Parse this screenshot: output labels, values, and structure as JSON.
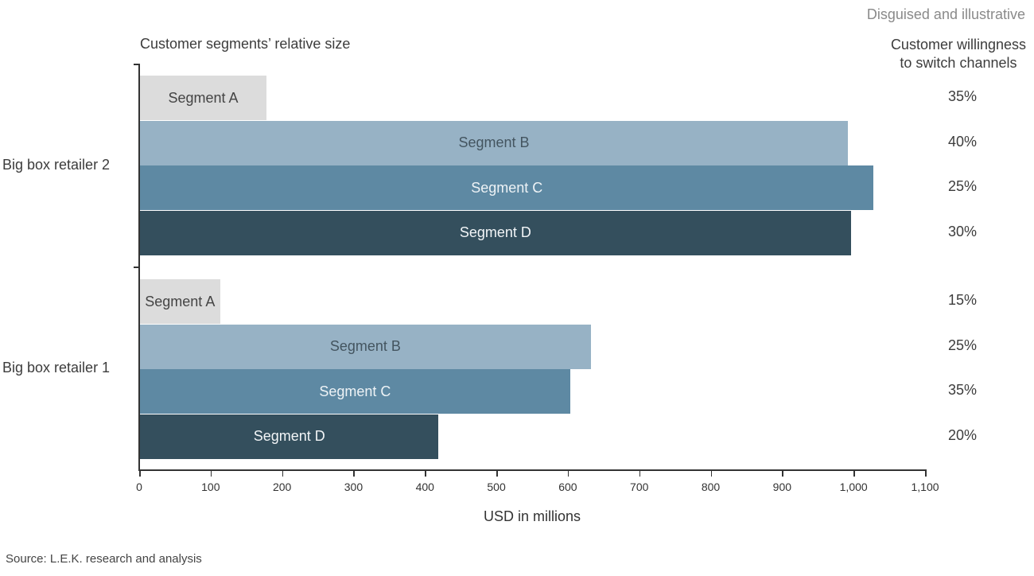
{
  "note": "Disguised and illustrative",
  "subtitle": "Customer segments’ relative size",
  "right_header": {
    "line1": "Customer willingness",
    "line2": "to switch channels"
  },
  "x_axis_label": "USD in millions",
  "source": "Source: L.E.K. research and analysis",
  "colors": {
    "segment_a": "#dcdcdc",
    "segment_b": "#97b2c5",
    "segment_c": "#5e89a3",
    "segment_d": "#344f5d",
    "axis": "#333333"
  },
  "chart_data": {
    "type": "bar",
    "orientation": "horizontal",
    "title": "Customer segments’ relative size",
    "xlabel": "USD in millions",
    "ylabel": "",
    "xlim": [
      0,
      1100
    ],
    "x_ticks": [
      "0",
      "100",
      "200",
      "300",
      "400",
      "500",
      "600",
      "700",
      "800",
      "900",
      "1,000",
      "1,100"
    ],
    "categories": [
      "Big box retailer 2",
      "Big box retailer 1"
    ],
    "series": [
      {
        "name": "Segment A",
        "values": [
          177,
          112
        ]
      },
      {
        "name": "Segment B",
        "values": [
          991,
          631
        ]
      },
      {
        "name": "Segment C",
        "values": [
          1027,
          602
        ]
      },
      {
        "name": "Segment D",
        "values": [
          995,
          418
        ]
      }
    ],
    "annotations": {
      "title": "Customer willingness to switch channels",
      "Big box retailer 2": {
        "Segment A": "35%",
        "Segment B": "40%",
        "Segment C": "25%",
        "Segment D": "30%"
      },
      "Big box retailer 1": {
        "Segment A": "15%",
        "Segment B": "25%",
        "Segment C": "35%",
        "Segment D": "20%"
      }
    },
    "grid": false,
    "legend": "inline bar labels"
  },
  "groups": [
    {
      "label": "Big box retailer 2",
      "bars": [
        {
          "label": "Segment A",
          "value": 177,
          "pct": "35%"
        },
        {
          "label": "Segment B",
          "value": 991,
          "pct": "40%"
        },
        {
          "label": "Segment C",
          "value": 1027,
          "pct": "25%"
        },
        {
          "label": "Segment D",
          "value": 995,
          "pct": "30%"
        }
      ]
    },
    {
      "label": "Big box retailer 1",
      "bars": [
        {
          "label": "Segment A",
          "value": 112,
          "pct": "15%"
        },
        {
          "label": "Segment B",
          "value": 631,
          "pct": "25%"
        },
        {
          "label": "Segment C",
          "value": 602,
          "pct": "35%"
        },
        {
          "label": "Segment D",
          "value": 418,
          "pct": "20%"
        }
      ]
    }
  ]
}
